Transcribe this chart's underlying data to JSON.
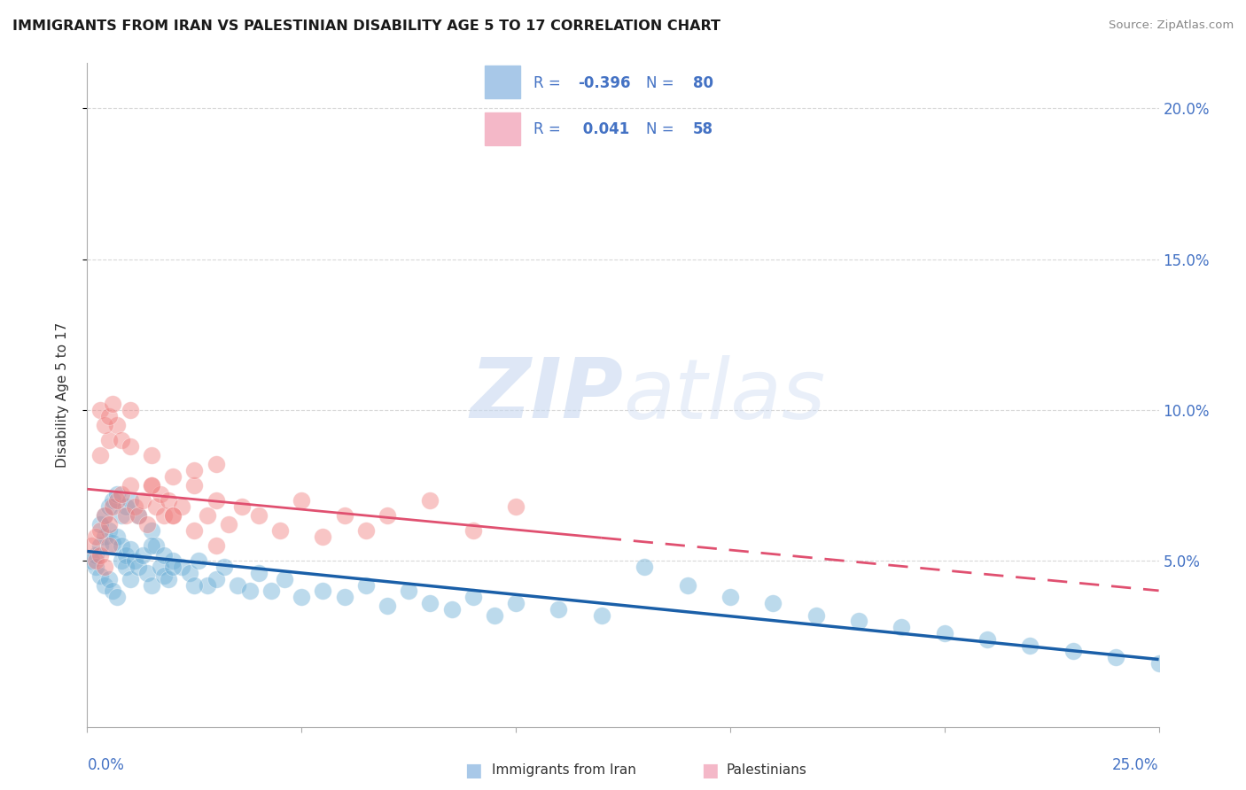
{
  "title": "IMMIGRANTS FROM IRAN VS PALESTINIAN DISABILITY AGE 5 TO 17 CORRELATION CHART",
  "source": "Source: ZipAtlas.com",
  "ylabel": "Disability Age 5 to 17",
  "xlim": [
    0.0,
    0.25
  ],
  "ylim": [
    -0.005,
    0.215
  ],
  "ytick_vals": [
    0.05,
    0.1,
    0.15,
    0.2
  ],
  "ytick_labels": [
    "5.0%",
    "10.0%",
    "15.0%",
    "20.0%"
  ],
  "iran_color": "#6baed6",
  "iran_line_color": "#1a5fa8",
  "iran_legend_color": "#a8c8e8",
  "pal_color": "#f08080",
  "pal_line_color": "#e05070",
  "pal_legend_color": "#f4b8c8",
  "watermark_zip": "ZIP",
  "watermark_atlas": "atlas",
  "background_color": "#ffffff",
  "grid_color": "#d0d0d0",
  "legend_blue": "#4472c4",
  "iran_x": [
    0.001,
    0.002,
    0.002,
    0.003,
    0.003,
    0.004,
    0.004,
    0.005,
    0.005,
    0.006,
    0.006,
    0.007,
    0.007,
    0.008,
    0.008,
    0.009,
    0.009,
    0.01,
    0.01,
    0.011,
    0.012,
    0.013,
    0.014,
    0.015,
    0.015,
    0.016,
    0.017,
    0.018,
    0.019,
    0.02,
    0.022,
    0.024,
    0.026,
    0.028,
    0.03,
    0.032,
    0.035,
    0.038,
    0.04,
    0.043,
    0.046,
    0.05,
    0.055,
    0.06,
    0.065,
    0.07,
    0.075,
    0.08,
    0.085,
    0.09,
    0.095,
    0.1,
    0.11,
    0.12,
    0.13,
    0.14,
    0.15,
    0.16,
    0.17,
    0.18,
    0.19,
    0.2,
    0.21,
    0.22,
    0.23,
    0.24,
    0.25,
    0.003,
    0.004,
    0.005,
    0.006,
    0.007,
    0.008,
    0.009,
    0.01,
    0.012,
    0.015,
    0.018,
    0.02,
    0.025
  ],
  "iran_y": [
    0.05,
    0.052,
    0.048,
    0.055,
    0.045,
    0.058,
    0.042,
    0.06,
    0.044,
    0.056,
    0.04,
    0.058,
    0.038,
    0.055,
    0.05,
    0.052,
    0.048,
    0.054,
    0.044,
    0.05,
    0.048,
    0.052,
    0.046,
    0.06,
    0.042,
    0.055,
    0.048,
    0.045,
    0.044,
    0.05,
    0.048,
    0.046,
    0.05,
    0.042,
    0.044,
    0.048,
    0.042,
    0.04,
    0.046,
    0.04,
    0.044,
    0.038,
    0.04,
    0.038,
    0.042,
    0.035,
    0.04,
    0.036,
    0.034,
    0.038,
    0.032,
    0.036,
    0.034,
    0.032,
    0.048,
    0.042,
    0.038,
    0.036,
    0.032,
    0.03,
    0.028,
    0.026,
    0.024,
    0.022,
    0.02,
    0.018,
    0.016,
    0.062,
    0.065,
    0.068,
    0.07,
    0.072,
    0.065,
    0.068,
    0.07,
    0.065,
    0.055,
    0.052,
    0.048,
    0.042
  ],
  "iran_sizes": [
    80,
    60,
    55,
    60,
    55,
    55,
    55,
    55,
    55,
    55,
    55,
    55,
    55,
    55,
    55,
    55,
    55,
    55,
    55,
    55,
    55,
    55,
    55,
    55,
    55,
    55,
    55,
    55,
    55,
    55,
    55,
    55,
    55,
    55,
    55,
    55,
    55,
    55,
    55,
    55,
    55,
    55,
    55,
    55,
    55,
    55,
    55,
    55,
    55,
    55,
    55,
    55,
    55,
    55,
    55,
    55,
    55,
    55,
    55,
    55,
    55,
    55,
    55,
    55,
    55,
    55,
    55,
    55,
    55,
    55,
    55,
    55,
    55,
    55,
    55,
    55,
    55,
    55,
    55,
    55
  ],
  "pal_x": [
    0.001,
    0.002,
    0.002,
    0.003,
    0.003,
    0.004,
    0.004,
    0.005,
    0.005,
    0.006,
    0.007,
    0.008,
    0.009,
    0.01,
    0.011,
    0.012,
    0.013,
    0.014,
    0.015,
    0.016,
    0.017,
    0.018,
    0.019,
    0.02,
    0.022,
    0.025,
    0.028,
    0.03,
    0.033,
    0.036,
    0.04,
    0.045,
    0.05,
    0.055,
    0.06,
    0.065,
    0.07,
    0.08,
    0.09,
    0.1,
    0.003,
    0.005,
    0.007,
    0.01,
    0.015,
    0.02,
    0.025,
    0.03,
    0.003,
    0.004,
    0.005,
    0.006,
    0.008,
    0.01,
    0.015,
    0.02,
    0.025,
    0.03
  ],
  "pal_y": [
    0.055,
    0.058,
    0.05,
    0.06,
    0.052,
    0.065,
    0.048,
    0.062,
    0.055,
    0.068,
    0.07,
    0.072,
    0.065,
    0.075,
    0.068,
    0.065,
    0.07,
    0.062,
    0.075,
    0.068,
    0.072,
    0.065,
    0.07,
    0.065,
    0.068,
    0.075,
    0.065,
    0.07,
    0.062,
    0.068,
    0.065,
    0.06,
    0.07,
    0.058,
    0.065,
    0.06,
    0.065,
    0.07,
    0.06,
    0.068,
    0.085,
    0.09,
    0.095,
    0.1,
    0.085,
    0.078,
    0.08,
    0.082,
    0.1,
    0.095,
    0.098,
    0.102,
    0.09,
    0.088,
    0.075,
    0.065,
    0.06,
    0.055
  ]
}
